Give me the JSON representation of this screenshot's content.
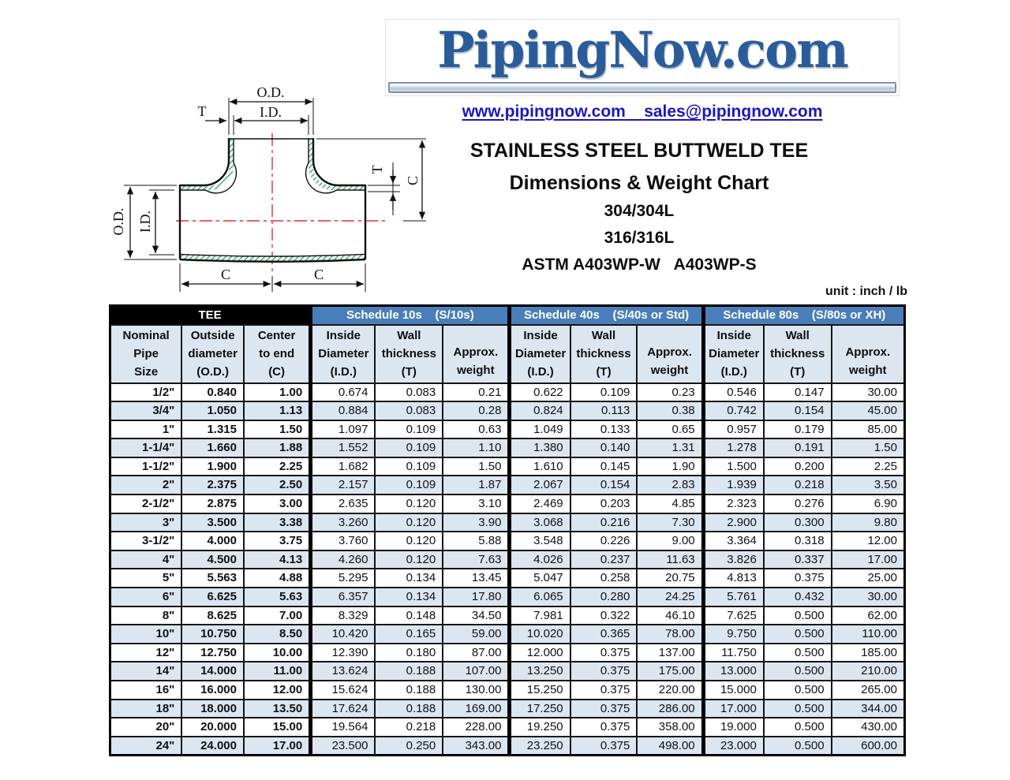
{
  "logo": {
    "text": "PipingNow.com",
    "color": "#2b5c9a"
  },
  "contact": {
    "website": "www.pipingnow.com",
    "separator": "    ",
    "email": "sales@pipingnow.com",
    "link_color": "#1b16c9"
  },
  "title": {
    "line1": "STAINLESS STEEL BUTTWELD TEE",
    "line2": "Dimensions & Weight Chart",
    "grade1": "304/304L",
    "grade2": "316/316L",
    "astm": "ASTM A403WP-W   A403WP-S",
    "unit": "unit : inch / lb"
  },
  "diagram": {
    "od": "O.D.",
    "id": "I.D.",
    "t": "T",
    "c": "C"
  },
  "colors": {
    "group_header_blue": "#4a7ebb",
    "subheader_blue": "#dce6f1",
    "row_alt_blue": "#dce6f1",
    "tee_header_black": "#000000",
    "hatch_green": "#17a24b",
    "centerline_red": "#e82e2e"
  },
  "table": {
    "groups": [
      "TEE",
      "Schedule 10s    (S/10s)",
      "Schedule 40s    (S/40s or Std)",
      "Schedule 80s    (S/80s or XH)"
    ],
    "col_headers": [
      "Nominal\nPipe\nSize",
      "Outside\ndiameter\n(O.D.)",
      "Center\nto end\n(C)",
      "Inside\nDiameter\n(I.D.)",
      "Wall\nthickness\n(T)",
      "Approx.\nweight",
      "Inside\nDiameter\n(I.D.)",
      "Wall\nthickness\n(T)",
      "Approx.\nweight",
      "Inside\nDiameter\n(I.D.)",
      "Wall\nthickness\n(T)",
      "Approx.\nweight"
    ],
    "rows": [
      [
        "1/2\"",
        "0.840",
        "1.00",
        "0.674",
        "0.083",
        "0.21",
        "0.622",
        "0.109",
        "0.23",
        "0.546",
        "0.147",
        "30.00"
      ],
      [
        "3/4\"",
        "1.050",
        "1.13",
        "0.884",
        "0.083",
        "0.28",
        "0.824",
        "0.113",
        "0.38",
        "0.742",
        "0.154",
        "45.00"
      ],
      [
        "1\"",
        "1.315",
        "1.50",
        "1.097",
        "0.109",
        "0.63",
        "1.049",
        "0.133",
        "0.65",
        "0.957",
        "0.179",
        "85.00"
      ],
      [
        "1-1/4\"",
        "1.660",
        "1.88",
        "1.552",
        "0.109",
        "1.10",
        "1.380",
        "0.140",
        "1.31",
        "1.278",
        "0.191",
        "1.50"
      ],
      [
        "1-1/2\"",
        "1.900",
        "2.25",
        "1.682",
        "0.109",
        "1.50",
        "1.610",
        "0.145",
        "1.90",
        "1.500",
        "0.200",
        "2.25"
      ],
      [
        "2\"",
        "2.375",
        "2.50",
        "2.157",
        "0.109",
        "1.87",
        "2.067",
        "0.154",
        "2.83",
        "1.939",
        "0.218",
        "3.50"
      ],
      [
        "2-1/2\"",
        "2.875",
        "3.00",
        "2.635",
        "0.120",
        "3.10",
        "2.469",
        "0.203",
        "4.85",
        "2.323",
        "0.276",
        "6.90"
      ],
      [
        "3\"",
        "3.500",
        "3.38",
        "3.260",
        "0.120",
        "3.90",
        "3.068",
        "0.216",
        "7.30",
        "2.900",
        "0.300",
        "9.80"
      ],
      [
        "3-1/2\"",
        "4.000",
        "3.75",
        "3.760",
        "0.120",
        "5.88",
        "3.548",
        "0.226",
        "9.00",
        "3.364",
        "0.318",
        "12.00"
      ],
      [
        "4\"",
        "4.500",
        "4.13",
        "4.260",
        "0.120",
        "7.63",
        "4.026",
        "0.237",
        "11.63",
        "3.826",
        "0.337",
        "17.00"
      ],
      [
        "5\"",
        "5.563",
        "4.88",
        "5.295",
        "0.134",
        "13.45",
        "5.047",
        "0.258",
        "20.75",
        "4.813",
        "0.375",
        "25.00"
      ],
      [
        "6\"",
        "6.625",
        "5.63",
        "6.357",
        "0.134",
        "17.80",
        "6.065",
        "0.280",
        "24.25",
        "5.761",
        "0.432",
        "30.00"
      ],
      [
        "8\"",
        "8.625",
        "7.00",
        "8.329",
        "0.148",
        "34.50",
        "7.981",
        "0.322",
        "46.10",
        "7.625",
        "0.500",
        "62.00"
      ],
      [
        "10\"",
        "10.750",
        "8.50",
        "10.420",
        "0.165",
        "59.00",
        "10.020",
        "0.365",
        "78.00",
        "9.750",
        "0.500",
        "110.00"
      ],
      [
        "12\"",
        "12.750",
        "10.00",
        "12.390",
        "0.180",
        "87.00",
        "12.000",
        "0.375",
        "137.00",
        "11.750",
        "0.500",
        "185.00"
      ],
      [
        "14\"",
        "14.000",
        "11.00",
        "13.624",
        "0.188",
        "107.00",
        "13.250",
        "0.375",
        "175.00",
        "13.000",
        "0.500",
        "210.00"
      ],
      [
        "16\"",
        "16.000",
        "12.00",
        "15.624",
        "0.188",
        "130.00",
        "15.250",
        "0.375",
        "220.00",
        "15.000",
        "0.500",
        "265.00"
      ],
      [
        "18\"",
        "18.000",
        "13.50",
        "17.624",
        "0.188",
        "169.00",
        "17.250",
        "0.375",
        "286.00",
        "17.000",
        "0.500",
        "344.00"
      ],
      [
        "20\"",
        "20.000",
        "15.00",
        "19.564",
        "0.218",
        "228.00",
        "19.250",
        "0.375",
        "358.00",
        "19.000",
        "0.500",
        "430.00"
      ],
      [
        "24\"",
        "24.000",
        "17.00",
        "23.500",
        "0.250",
        "343.00",
        "23.250",
        "0.375",
        "498.00",
        "23.000",
        "0.500",
        "600.00"
      ]
    ]
  }
}
